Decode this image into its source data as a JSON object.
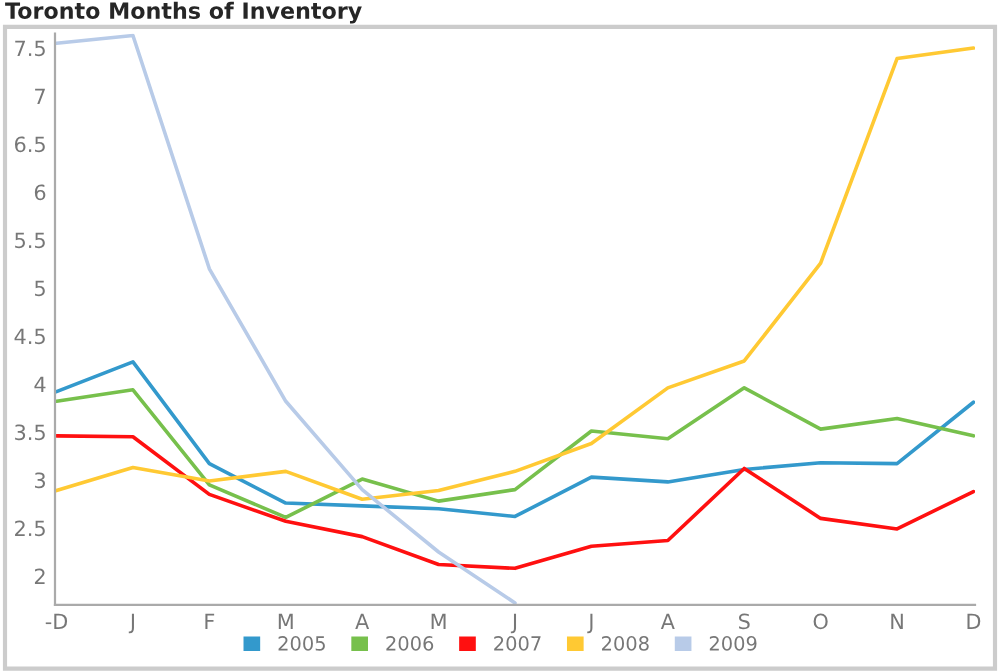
{
  "chart_data": {
    "type": "line",
    "title": "Toronto Months of Inventory",
    "categories": [
      "-D",
      "J",
      "F",
      "M",
      "A",
      "M",
      "J",
      "J",
      "A",
      "S",
      "O",
      "N",
      "D"
    ],
    "series": [
      {
        "name": "2005",
        "color": "#3399cc",
        "values": [
          3.92,
          4.23,
          3.17,
          2.76,
          2.73,
          2.7,
          2.62,
          3.03,
          2.98,
          3.11,
          3.18,
          3.17,
          3.81
        ]
      },
      {
        "name": "2006",
        "color": "#77c04c",
        "values": [
          3.82,
          3.94,
          2.95,
          2.61,
          3.01,
          2.78,
          2.9,
          3.51,
          3.43,
          3.96,
          3.53,
          3.64,
          3.46
        ]
      },
      {
        "name": "2007",
        "color": "#ff1010",
        "values": [
          3.46,
          3.45,
          2.85,
          2.57,
          2.41,
          2.12,
          2.08,
          2.31,
          2.37,
          3.12,
          2.6,
          2.49,
          2.88
        ]
      },
      {
        "name": "2008",
        "color": "#ffc933",
        "values": [
          2.89,
          3.13,
          2.99,
          3.09,
          2.8,
          2.89,
          3.09,
          3.38,
          3.96,
          4.24,
          5.26,
          7.39,
          7.5
        ]
      },
      {
        "name": "2009",
        "color": "#b8cbe8",
        "values": [
          7.55,
          7.63,
          5.2,
          3.82,
          2.9,
          2.25,
          1.72,
          null,
          null,
          null,
          null,
          null,
          null
        ]
      }
    ],
    "ylim": [
      1.7,
      7.65
    ],
    "yticks": [
      2,
      2.5,
      3,
      3.5,
      4,
      4.5,
      5,
      5.5,
      6,
      6.5,
      7,
      7.5
    ],
    "grid": false,
    "legend": "bottom",
    "marker": "none",
    "line_style": "solid"
  }
}
